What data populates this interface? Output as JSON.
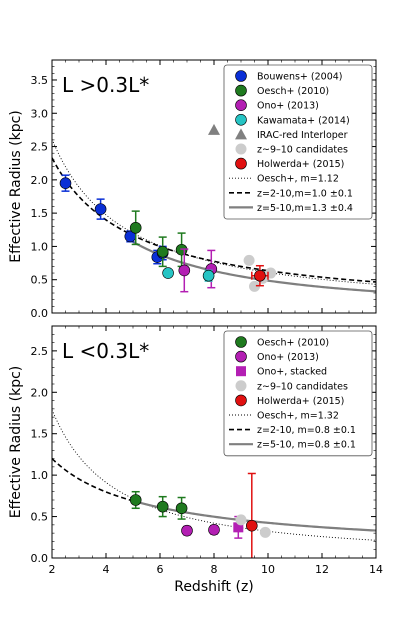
{
  "chart_data": [
    {
      "type": "scatter",
      "panel_label": "L >0.3L*",
      "xlabel": "",
      "ylabel": "Effective Radius (kpc)",
      "xlim": [
        2,
        14
      ],
      "ylim": [
        0.0,
        3.8
      ],
      "yticks": [
        "0.0",
        "0.5",
        "1.0",
        "1.5",
        "2.0",
        "2.5",
        "3.0",
        "3.5"
      ],
      "xticks": [],
      "legend_position": "top-right",
      "legend": [
        {
          "label": "Bouwens+ (2004)",
          "marker": "circle",
          "color": "#0a2fd6"
        },
        {
          "label": "Oesch+ (2010)",
          "marker": "circle",
          "color": "#1f7a1f"
        },
        {
          "label": "Ono+ (2013)",
          "marker": "circle",
          "color": "#b31fb3"
        },
        {
          "label": "Kawamata+ (2014)",
          "marker": "circle",
          "color": "#26c4c4"
        },
        {
          "label": "IRAC-red Interloper",
          "marker": "triangle",
          "color": "#808080"
        },
        {
          "label": "z~9–10 candidates",
          "marker": "circle",
          "color": "#cccccc"
        },
        {
          "label": "Holwerda+ (2015)",
          "marker": "circle",
          "color": "#e01010"
        },
        {
          "label": "Oesch+, m=1.12",
          "line": "dotted",
          "color": "#000000"
        },
        {
          "label": "z=2-10,m=1.0 ±0.1",
          "line": "dashed",
          "color": "#000000"
        },
        {
          "label": "z=5-10,m=1.3 ±0.4",
          "line": "solid",
          "color": "#7f7f7f"
        }
      ],
      "series": [
        {
          "name": "Bouwens+ (2004)",
          "color": "#0a2fd6",
          "points": [
            {
              "x": 2.5,
              "y": 1.95,
              "err": 0.12
            },
            {
              "x": 3.8,
              "y": 1.56,
              "err": 0.15
            },
            {
              "x": 4.9,
              "y": 1.15,
              "err": 0.08
            },
            {
              "x": 5.9,
              "y": 0.84,
              "err": 0.1
            },
            {
              "x": 6.1,
              "y": 0.9,
              "err": 0.1
            }
          ]
        },
        {
          "name": "Oesch+ (2010)",
          "color": "#1f7a1f",
          "points": [
            {
              "x": 5.1,
              "y": 1.28,
              "err": 0.25
            },
            {
              "x": 6.1,
              "y": 0.92,
              "err": 0.22
            },
            {
              "x": 6.8,
              "y": 0.95,
              "err": 0.25
            }
          ]
        },
        {
          "name": "Ono+ (2013)",
          "color": "#b31fb3",
          "points": [
            {
              "x": 6.9,
              "y": 0.64,
              "err": 0.32
            },
            {
              "x": 7.9,
              "y": 0.66,
              "err": 0.28
            }
          ]
        },
        {
          "name": "Kawamata+ (2014)",
          "color": "#26c4c4",
          "points": [
            {
              "x": 6.3,
              "y": 0.6,
              "err": 0.05
            },
            {
              "x": 7.8,
              "y": 0.56,
              "err": 0.08
            }
          ]
        },
        {
          "name": "IRAC-red Interloper",
          "color": "#808080",
          "marker": "triangle",
          "points": [
            {
              "x": 8.0,
              "y": 2.75
            }
          ]
        },
        {
          "name": "z~9–10 candidates",
          "color": "#cccccc",
          "points": [
            {
              "x": 9.3,
              "y": 0.79
            },
            {
              "x": 9.5,
              "y": 0.4
            },
            {
              "x": 9.8,
              "y": 0.52
            },
            {
              "x": 10.1,
              "y": 0.6
            }
          ]
        },
        {
          "name": "Holwerda+ (2015)",
          "color": "#e01010",
          "points": [
            {
              "x": 9.7,
              "y": 0.56,
              "err": 0.15,
              "xerr": 0.3
            }
          ]
        }
      ],
      "curves": [
        {
          "name": "Oesch+, m=1.12",
          "style": "dotted",
          "color": "#000000",
          "amp": 2.61,
          "m": 1.12
        },
        {
          "name": "z=2-10,m=1.0 ±0.1",
          "style": "dashed",
          "color": "#000000",
          "amp": 2.33,
          "m": 1.0
        },
        {
          "name": "z=5-10,m=1.3 ±0.4",
          "style": "solid",
          "color": "#7f7f7f",
          "amp": 2.63,
          "m": 1.3,
          "xrange": [
            5,
            14
          ]
        }
      ]
    },
    {
      "type": "scatter",
      "panel_label": "L <0.3L*",
      "xlabel": "Redshift (z)",
      "ylabel": "Effective Radius (kpc)",
      "xlim": [
        2,
        14
      ],
      "ylim": [
        0.0,
        2.8
      ],
      "yticks": [
        "0.0",
        "0.5",
        "1.0",
        "1.5",
        "2.0",
        "2.5"
      ],
      "xticks": [
        "2",
        "4",
        "6",
        "8",
        "10",
        "12",
        "14"
      ],
      "legend_position": "top-right",
      "legend": [
        {
          "label": "Oesch+ (2010)",
          "marker": "circle",
          "color": "#1f7a1f"
        },
        {
          "label": "Ono+ (2013)",
          "marker": "circle",
          "color": "#b31fb3"
        },
        {
          "label": "Ono+, stacked",
          "marker": "square",
          "color": "#b31fb3"
        },
        {
          "label": "z~9–10 candidates",
          "marker": "circle",
          "color": "#cccccc"
        },
        {
          "label": "Holwerda+ (2015)",
          "marker": "circle",
          "color": "#e01010"
        },
        {
          "label": "Oesch+, m=1.32",
          "line": "dotted",
          "color": "#000000"
        },
        {
          "label": "z=2-10, m=0.8 ±0.1",
          "line": "dashed",
          "color": "#000000"
        },
        {
          "label": "z=5-10, m=0.8 ±0.1",
          "line": "solid",
          "color": "#7f7f7f"
        }
      ],
      "series": [
        {
          "name": "Oesch+ (2010)",
          "color": "#1f7a1f",
          "points": [
            {
              "x": 5.1,
              "y": 0.7,
              "err": 0.1
            },
            {
              "x": 6.1,
              "y": 0.62,
              "err": 0.12
            },
            {
              "x": 6.8,
              "y": 0.6,
              "err": 0.13
            }
          ]
        },
        {
          "name": "Ono+ (2013)",
          "color": "#b31fb3",
          "points": [
            {
              "x": 7.0,
              "y": 0.33,
              "err": 0.05
            },
            {
              "x": 8.0,
              "y": 0.34,
              "err": 0.05
            }
          ]
        },
        {
          "name": "Ono+, stacked",
          "color": "#b31fb3",
          "marker": "square",
          "points": [
            {
              "x": 8.9,
              "y": 0.37,
              "err": 0.13
            }
          ]
        },
        {
          "name": "z~9–10 candidates",
          "color": "#cccccc",
          "points": [
            {
              "x": 9.0,
              "y": 0.46
            },
            {
              "x": 9.9,
              "y": 0.31
            }
          ]
        },
        {
          "name": "Holwerda+ (2015)",
          "color": "#e01010",
          "points": [
            {
              "x": 9.4,
              "y": 0.39,
              "ehi": 1.02,
              "elo": 0.0
            }
          ]
        }
      ],
      "curves": [
        {
          "name": "Oesch+, m=1.32",
          "style": "dotted",
          "color": "#000000",
          "amp": 1.79,
          "m": 1.32
        },
        {
          "name": "z=2-10, m=0.8 ±0.1",
          "style": "dashed",
          "color": "#000000",
          "amp": 1.2,
          "m": 0.8
        },
        {
          "name": "z=5-10, m=0.8 ±0.1",
          "style": "solid",
          "color": "#7f7f7f",
          "amp": 1.2,
          "m": 0.8,
          "xrange": [
            5,
            14
          ]
        }
      ]
    }
  ]
}
